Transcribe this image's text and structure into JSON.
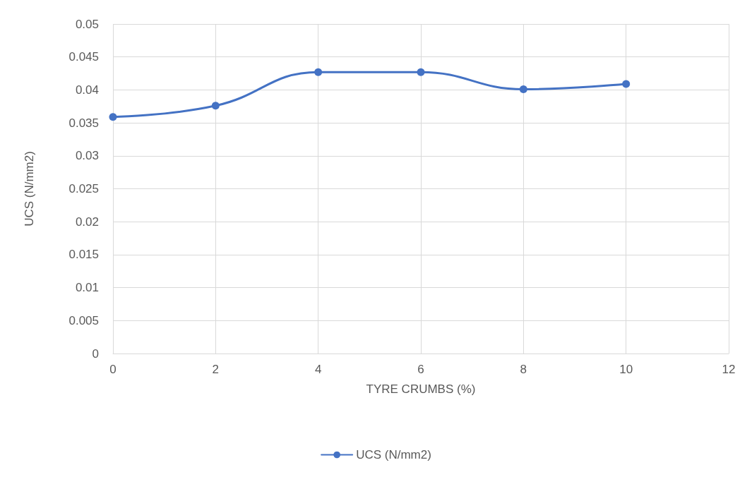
{
  "chart_data": {
    "type": "line",
    "xlabel": "TYRE CRUMBS (%)",
    "ylabel": "UCS (N/mm2)",
    "x": [
      0,
      2,
      4,
      6,
      8,
      10
    ],
    "series": [
      {
        "name": "UCS (N/mm2)",
        "color": "#4472c4",
        "values": [
          0.0359,
          0.0376,
          0.0427,
          0.0427,
          0.0401,
          0.0409
        ]
      }
    ],
    "xlim": [
      0,
      12
    ],
    "xticks": [
      0,
      2,
      4,
      6,
      8,
      10,
      12
    ],
    "ylim": [
      0,
      0.05
    ],
    "yticks": [
      0,
      0.005,
      0.01,
      0.015,
      0.02,
      0.025,
      0.03,
      0.035,
      0.04,
      0.045,
      0.05
    ],
    "grid": true,
    "legend": "bottom",
    "marker": "circle",
    "line_style": "solid"
  }
}
